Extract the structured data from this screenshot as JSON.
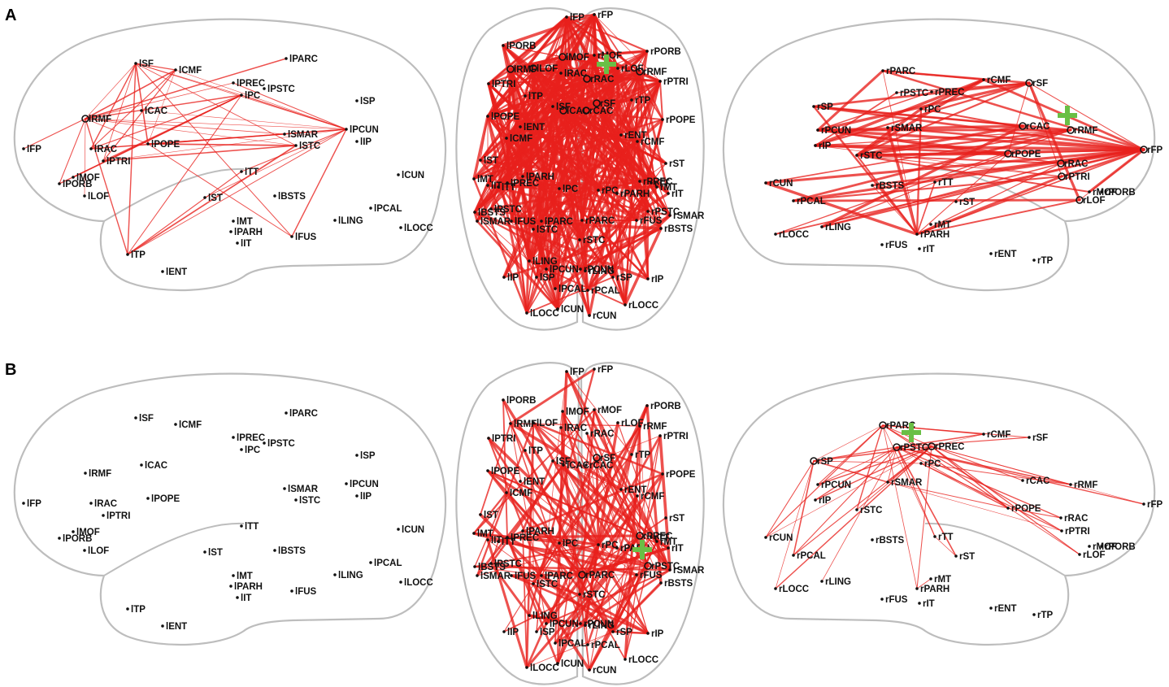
{
  "panel_labels": [
    "A",
    "B"
  ],
  "marker_color": "#6abf45",
  "edge_color": "#e8201c",
  "panels": {
    "A_left": {
      "nodes": [
        {
          "id": "lSF",
          "label": "lSF"
        },
        {
          "id": "lCMF",
          "label": "lCMF"
        },
        {
          "id": "lPARC",
          "label": "lPARC"
        },
        {
          "id": "lPREC",
          "label": "lPREC"
        },
        {
          "id": "lPSTC",
          "label": "lPSTC"
        },
        {
          "id": "lPC",
          "label": "lPC"
        },
        {
          "id": "lSP",
          "label": "lSP"
        },
        {
          "id": "lRMF",
          "label": "lRMF"
        },
        {
          "id": "lCAC",
          "label": "lCAC"
        },
        {
          "id": "lSMAR",
          "label": "lSMAR"
        },
        {
          "id": "lPCUN",
          "label": "lPCUN"
        },
        {
          "id": "lSTC",
          "label": "lSTC"
        },
        {
          "id": "lIP",
          "label": "lIP"
        },
        {
          "id": "lFP",
          "label": "lFP"
        },
        {
          "id": "lRAC",
          "label": "lRAC"
        },
        {
          "id": "lPOPE",
          "label": "lPOPE"
        },
        {
          "id": "lPTRI",
          "label": "lPTRI"
        },
        {
          "id": "lMOF",
          "label": "lMOF"
        },
        {
          "id": "lPORB",
          "label": "lPORB"
        },
        {
          "id": "lLOF",
          "label": "lLOF"
        },
        {
          "id": "lTT",
          "label": "lTT"
        },
        {
          "id": "lCUN",
          "label": "lCUN"
        },
        {
          "id": "lST",
          "label": "lST"
        },
        {
          "id": "lBSTS",
          "label": "lBSTS"
        },
        {
          "id": "lMT",
          "label": "lMT"
        },
        {
          "id": "lPARH",
          "label": "lPARH"
        },
        {
          "id": "lIT",
          "label": "lIT"
        },
        {
          "id": "lPCAL",
          "label": "lPCAL"
        },
        {
          "id": "lLING",
          "label": "lLING"
        },
        {
          "id": "lLOCC",
          "label": "lLOCC"
        },
        {
          "id": "lFUS",
          "label": "lFUS"
        },
        {
          "id": "lTP",
          "label": "lTP"
        },
        {
          "id": "lENT",
          "label": "lENT"
        }
      ]
    },
    "A_right": {
      "nodes": [
        {
          "id": "rPARC",
          "label": "rPARC"
        },
        {
          "id": "rCMF",
          "label": "rCMF"
        },
        {
          "id": "rSF",
          "label": "rSF"
        },
        {
          "id": "rPSTC",
          "label": "rPSTC"
        },
        {
          "id": "rPREC",
          "label": "rPREC"
        },
        {
          "id": "rSP",
          "label": "rSP"
        },
        {
          "id": "rPC",
          "label": "rPC"
        },
        {
          "id": "rPCUN",
          "label": "rPCUN"
        },
        {
          "id": "rSMAR",
          "label": "rSMAR"
        },
        {
          "id": "rCAC",
          "label": "rCAC"
        },
        {
          "id": "rRMF",
          "label": "rRMF"
        },
        {
          "id": "rIP",
          "label": "rIP"
        },
        {
          "id": "rSTC",
          "label": "rSTC"
        },
        {
          "id": "rPOPE",
          "label": "rPOPE"
        },
        {
          "id": "rFP",
          "label": "rFP"
        },
        {
          "id": "rRAC",
          "label": "rRAC"
        },
        {
          "id": "rPTRI",
          "label": "rPTRI"
        },
        {
          "id": "rMOF",
          "label": "rMOF"
        },
        {
          "id": "rPORB",
          "label": "rPORB"
        },
        {
          "id": "rLOF",
          "label": "rLOF"
        },
        {
          "id": "rCUN",
          "label": "rCUN"
        },
        {
          "id": "rBSTS",
          "label": "rBSTS"
        },
        {
          "id": "rTT",
          "label": "rTT"
        },
        {
          "id": "rST",
          "label": "rST"
        },
        {
          "id": "rPCAL",
          "label": "rPCAL"
        },
        {
          "id": "rMT",
          "label": "rMT"
        },
        {
          "id": "rLING",
          "label": "rLING"
        },
        {
          "id": "rLOCC",
          "label": "rLOCC"
        },
        {
          "id": "rPARH",
          "label": "rPARH"
        },
        {
          "id": "rFUS",
          "label": "rFUS"
        },
        {
          "id": "rIT",
          "label": "rIT"
        },
        {
          "id": "rENT",
          "label": "rENT"
        },
        {
          "id": "rTP",
          "label": "rTP"
        }
      ]
    },
    "A_top": {
      "nodes": [
        {
          "id": "lFP",
          "label": "lFP"
        },
        {
          "id": "rFP",
          "label": "rFP"
        },
        {
          "id": "lPORB",
          "label": "lPORB"
        },
        {
          "id": "rPORB",
          "label": "rPORB"
        },
        {
          "id": "lMOF",
          "label": "lMOF"
        },
        {
          "id": "rMOF",
          "label": "rMOF"
        },
        {
          "id": "lRMF",
          "label": "lRMF"
        },
        {
          "id": "lLOF",
          "label": "lLOF"
        },
        {
          "id": "rLOF",
          "label": "rLOF"
        },
        {
          "id": "rRMF",
          "label": "rRMF"
        },
        {
          "id": "lRAC",
          "label": "lRAC"
        },
        {
          "id": "rRAC",
          "label": "rRAC"
        },
        {
          "id": "lPTRI",
          "label": "lPTRI"
        },
        {
          "id": "rPTRI",
          "label": "rPTRI"
        },
        {
          "id": "lTP",
          "label": "lTP"
        },
        {
          "id": "rTP",
          "label": "rTP"
        },
        {
          "id": "lSF",
          "label": "lSF"
        },
        {
          "id": "rSF",
          "label": "rSF"
        },
        {
          "id": "lCAC",
          "label": "lCAC"
        },
        {
          "id": "rCAC",
          "label": "rCAC"
        },
        {
          "id": "lPOPE",
          "label": "lPOPE"
        },
        {
          "id": "rPOPE",
          "label": "rPOPE"
        },
        {
          "id": "lENT",
          "label": "lENT"
        },
        {
          "id": "lCMF",
          "label": "lCMF"
        },
        {
          "id": "rENT",
          "label": "rENT"
        },
        {
          "id": "rCMF",
          "label": "rCMF"
        },
        {
          "id": "lST",
          "label": "lST"
        },
        {
          "id": "rST",
          "label": "rST"
        },
        {
          "id": "lMT",
          "label": "lMT"
        },
        {
          "id": "lIT",
          "label": "lIT"
        },
        {
          "id": "lTT",
          "label": "lTT"
        },
        {
          "id": "lPREC",
          "label": "lPREC"
        },
        {
          "id": "lPARH",
          "label": "lPARH"
        },
        {
          "id": "lPC",
          "label": "lPC"
        },
        {
          "id": "rPC",
          "label": "rPC"
        },
        {
          "id": "rPARH",
          "label": "rPARH"
        },
        {
          "id": "rPREC",
          "label": "rPREC"
        },
        {
          "id": "rTT",
          "label": "rTT"
        },
        {
          "id": "rMT",
          "label": "rMT"
        },
        {
          "id": "rIT",
          "label": "rIT"
        },
        {
          "id": "lBSTS",
          "label": "lBSTS"
        },
        {
          "id": "lPSTC",
          "label": "lPSTC"
        },
        {
          "id": "lSMAR",
          "label": "lSMAR"
        },
        {
          "id": "lFUS",
          "label": "lFUS"
        },
        {
          "id": "lPARC",
          "label": "lPARC"
        },
        {
          "id": "rPARC",
          "label": "rPARC"
        },
        {
          "id": "rFUS",
          "label": "rFUS"
        },
        {
          "id": "rPSTC",
          "label": "rPSTC"
        },
        {
          "id": "rSMAR",
          "label": "rSMAR"
        },
        {
          "id": "rBSTS",
          "label": "rBSTS"
        },
        {
          "id": "lSTC",
          "label": "lSTC"
        },
        {
          "id": "rSTC",
          "label": "rSTC"
        },
        {
          "id": "lLING",
          "label": "lLING"
        },
        {
          "id": "rLING",
          "label": "rLING"
        },
        {
          "id": "lPCUN",
          "label": "lPCUN"
        },
        {
          "id": "rPCUN",
          "label": "rPCUN"
        },
        {
          "id": "lIP",
          "label": "lIP"
        },
        {
          "id": "lSP",
          "label": "lSP"
        },
        {
          "id": "rSP",
          "label": "rSP"
        },
        {
          "id": "rIP",
          "label": "rIP"
        },
        {
          "id": "lPCAL",
          "label": "lPCAL"
        },
        {
          "id": "rPCAL",
          "label": "rPCAL"
        },
        {
          "id": "lLOCC",
          "label": "lLOCC"
        },
        {
          "id": "lCUN",
          "label": "lCUN"
        },
        {
          "id": "rCUN",
          "label": "rCUN"
        },
        {
          "id": "rLOCC",
          "label": "rLOCC"
        }
      ]
    }
  }
}
